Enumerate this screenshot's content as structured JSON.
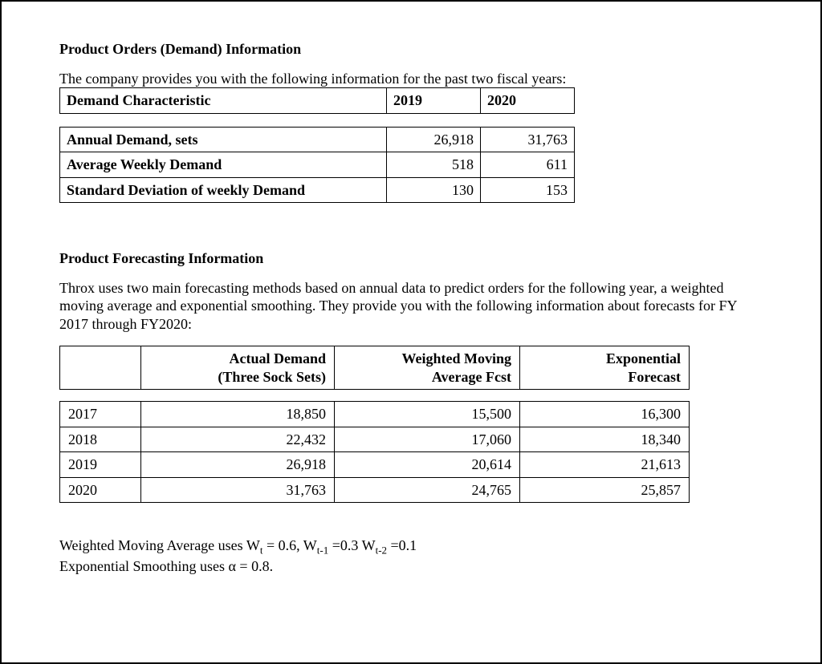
{
  "section1": {
    "heading": "Product Orders (Demand) Information",
    "intro": "The company provides you with the following information for the past two fiscal years:",
    "table": {
      "col_label_header": "Demand Characteristic",
      "col_2019": "2019",
      "col_2020": "2020",
      "rows": [
        {
          "label": "Annual Demand, sets",
          "v2019": "26,918",
          "v2020": "31,763"
        },
        {
          "label": "Average Weekly Demand",
          "v2019": "518",
          "v2020": "611"
        },
        {
          "label": "Standard Deviation of weekly Demand",
          "v2019": "130",
          "v2020": "153"
        }
      ]
    }
  },
  "section2": {
    "heading": "Product Forecasting Information",
    "intro": "Throx uses two main forecasting methods based on annual data to predict orders for the following year, a weighted moving average and exponential smoothing.  They provide you with the following information about forecasts for FY 2017 through FY2020:",
    "table": {
      "headers": {
        "year": "",
        "actual_l1": "Actual Demand",
        "actual_l2": "(Three Sock Sets)",
        "wma_l1": "Weighted Moving",
        "wma_l2": "Average Fcst",
        "exp_l1": "Exponential",
        "exp_l2": "Forecast"
      },
      "rows": [
        {
          "year": "2017",
          "actual": "18,850",
          "wma": "15,500",
          "exp": "16,300"
        },
        {
          "year": "2018",
          "actual": "22,432",
          "wma": "17,060",
          "exp": "18,340"
        },
        {
          "year": "2019",
          "actual": "26,918",
          "wma": "20,614",
          "exp": "21,613"
        },
        {
          "year": "2020",
          "actual": "31,763",
          "wma": "24,765",
          "exp": "25,857"
        }
      ]
    },
    "note_wma_prefix": "Weighted Moving Average uses W",
    "note_wma_t": "t",
    "note_wma_eq1": " = 0.6, W",
    "note_wma_t1": "t-1",
    "note_wma_eq2": " =0.3 W",
    "note_wma_t2": "t-2",
    "note_wma_eq3": " =0.1",
    "note_exp": "Exponential Smoothing uses α = 0.8."
  }
}
